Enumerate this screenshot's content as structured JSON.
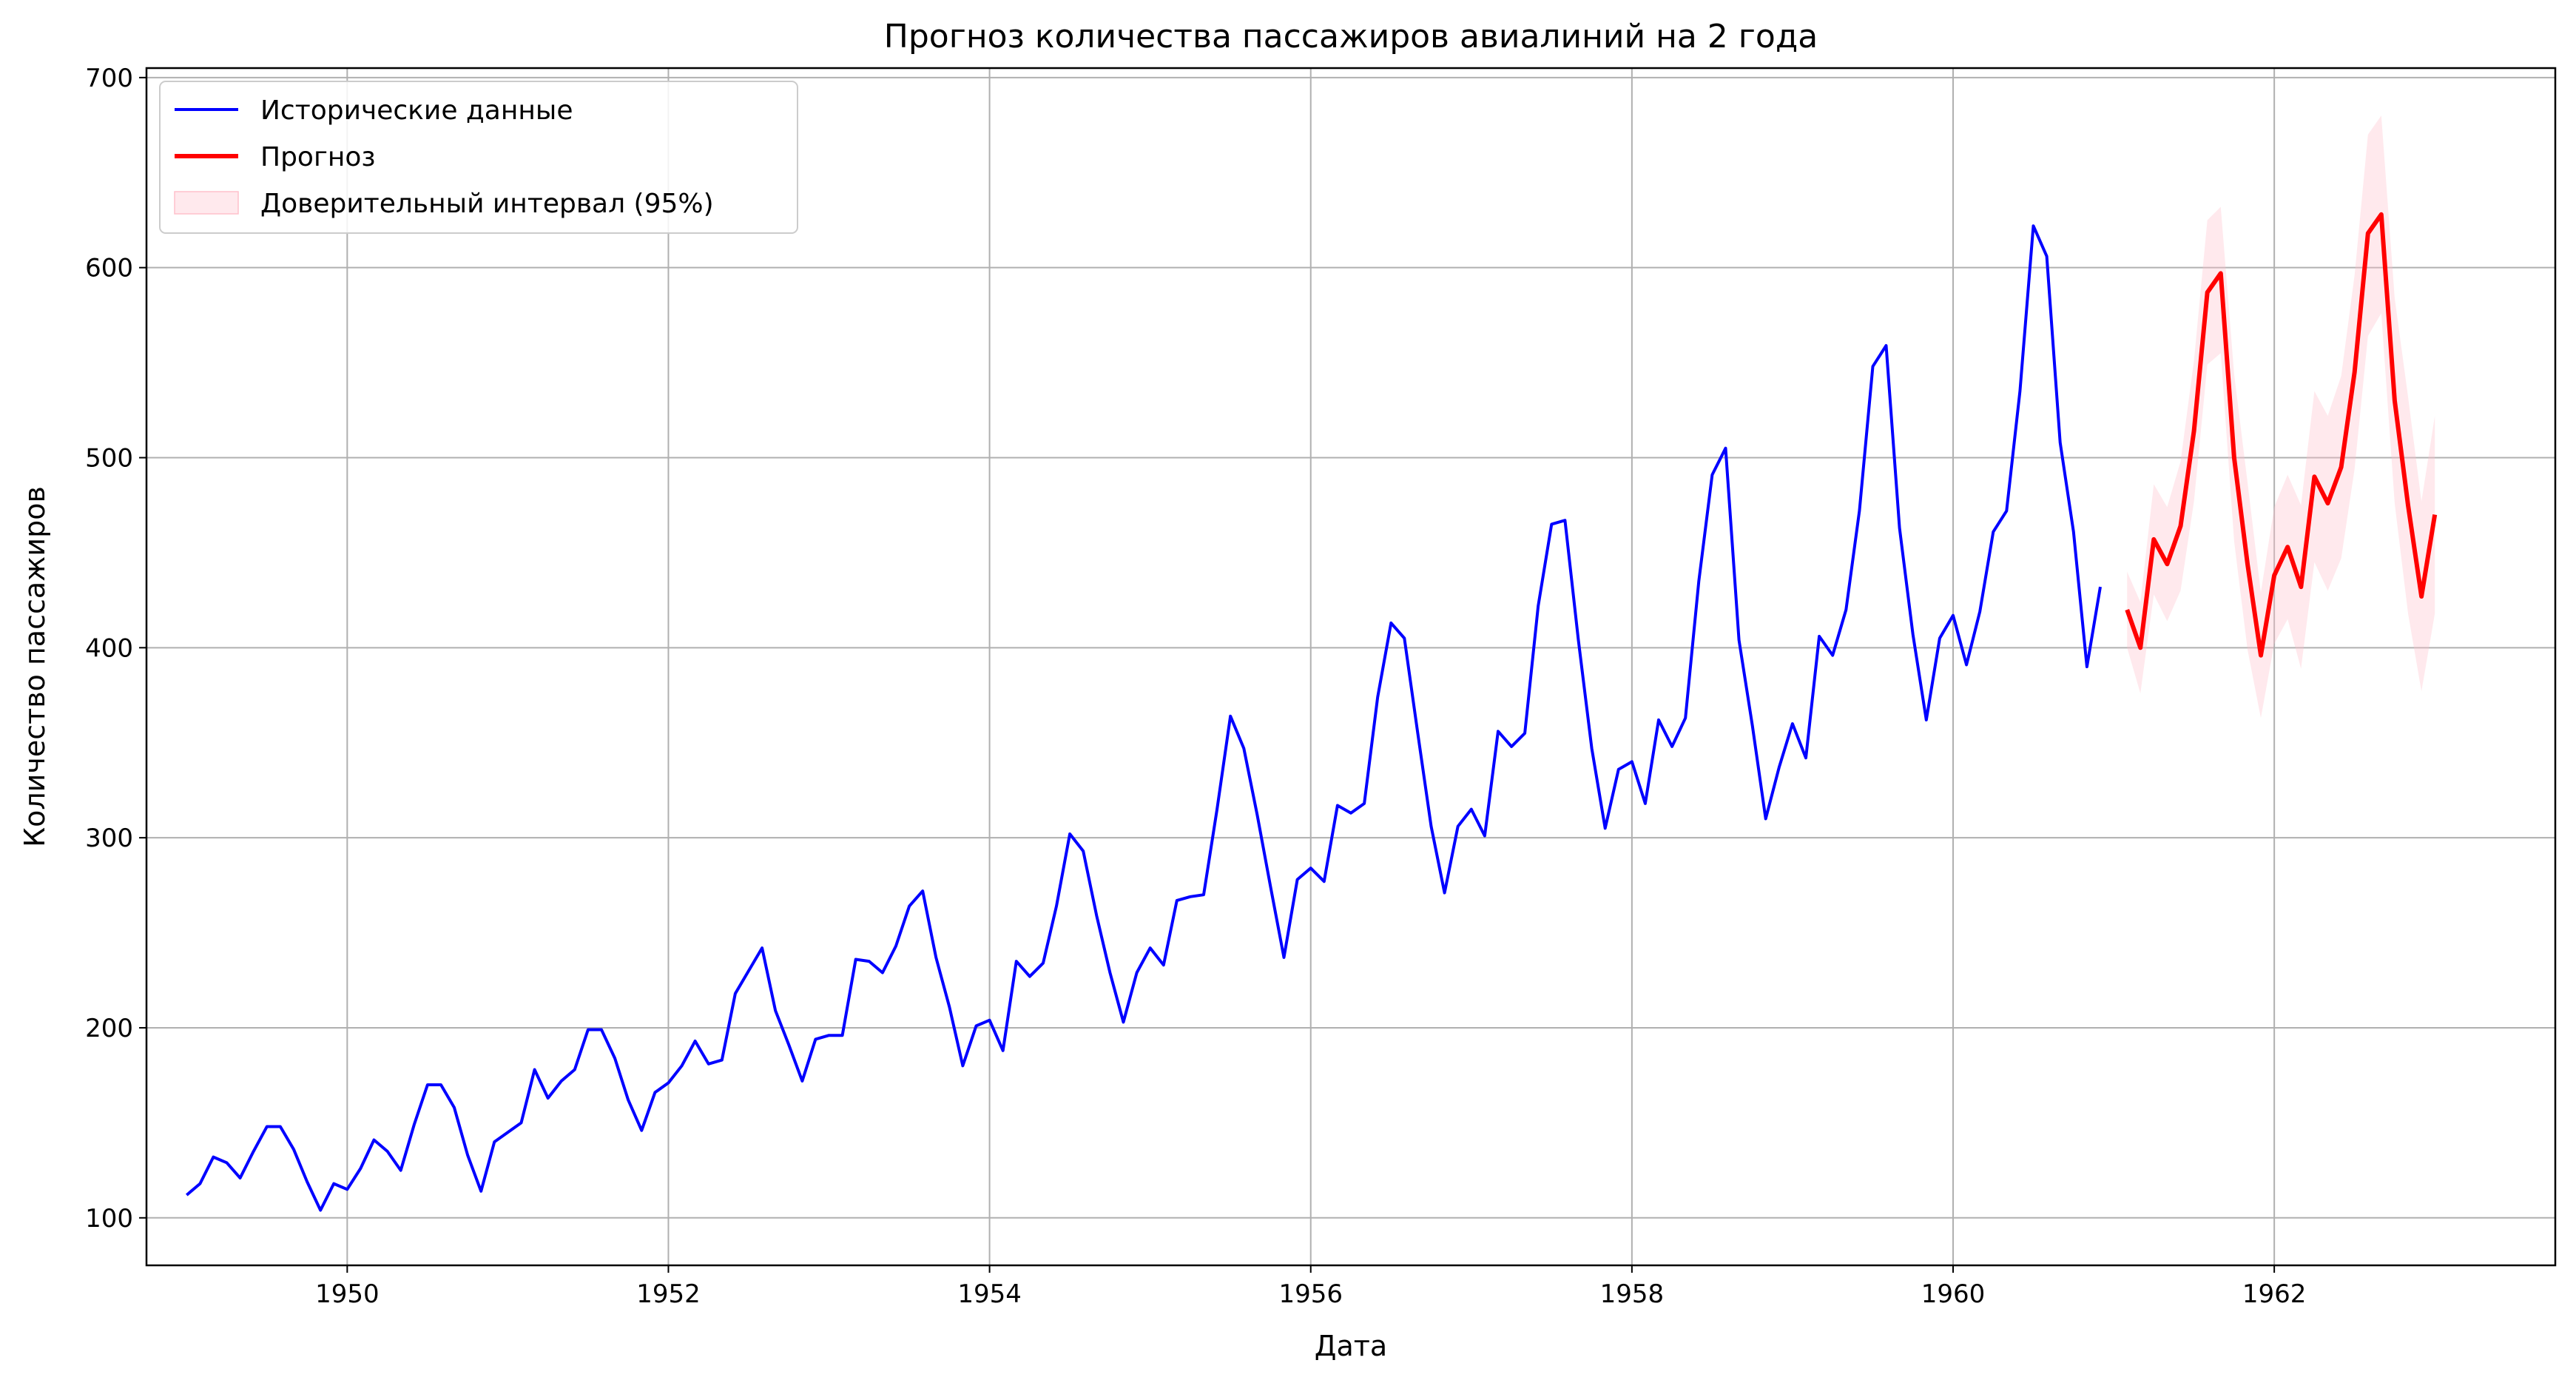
{
  "chart_data": {
    "type": "line",
    "title": "Прогноз количества пассажиров авиалиний на 2 года",
    "xlabel": "Дата",
    "ylabel": "Количество пассажиров",
    "xlim": [
      1948.75,
      1963.75
    ],
    "ylim": [
      75,
      705
    ],
    "xticks": [
      1950,
      1952,
      1954,
      1956,
      1958,
      1960,
      1962
    ],
    "yticks": [
      100,
      200,
      300,
      400,
      500,
      600,
      700
    ],
    "grid": true,
    "legend_position": "top-left",
    "series": [
      {
        "name": "Исторические данные",
        "color": "#0000ff",
        "x_start": 1949.0,
        "x_step": 0.083333,
        "values": [
          112,
          118,
          132,
          129,
          121,
          135,
          148,
          148,
          136,
          119,
          104,
          118,
          115,
          126,
          141,
          135,
          125,
          149,
          170,
          170,
          158,
          133,
          114,
          140,
          145,
          150,
          178,
          163,
          172,
          178,
          199,
          199,
          184,
          162,
          146,
          166,
          171,
          180,
          193,
          181,
          183,
          218,
          230,
          242,
          209,
          191,
          172,
          194,
          196,
          196,
          236,
          235,
          229,
          243,
          264,
          272,
          237,
          211,
          180,
          201,
          204,
          188,
          235,
          227,
          234,
          264,
          302,
          293,
          259,
          229,
          203,
          229,
          242,
          233,
          267,
          269,
          270,
          315,
          364,
          347,
          312,
          274,
          237,
          278,
          284,
          277,
          317,
          313,
          318,
          374,
          413,
          405,
          355,
          306,
          271,
          306,
          315,
          301,
          356,
          348,
          355,
          422,
          465,
          467,
          404,
          347,
          305,
          336,
          340,
          318,
          362,
          348,
          363,
          435,
          491,
          505,
          404,
          359,
          310,
          337,
          360,
          342,
          406,
          396,
          420,
          472,
          548,
          559,
          463,
          407,
          362,
          405,
          417,
          391,
          419,
          461,
          472,
          535,
          622,
          606,
          508,
          461,
          390,
          432
        ]
      },
      {
        "name": "Прогноз",
        "color": "#ff0000",
        "x_start": 1961.083333,
        "x_step": 0.083333,
        "values": [
          420,
          400,
          457,
          444,
          464,
          514,
          587,
          597,
          500,
          444,
          396,
          438,
          453,
          432,
          490,
          476,
          495,
          545,
          618,
          628,
          530,
          475,
          427,
          470
        ]
      }
    ],
    "confidence_interval": {
      "name": "Доверительный интервал (95%)",
      "color": "#ffc0cb",
      "lower": [
        400,
        376,
        428,
        414,
        430,
        477,
        549,
        555,
        456,
        399,
        363,
        402,
        415,
        389,
        445,
        430,
        447,
        494,
        564,
        576,
        476,
        418,
        377,
        418
      ],
      "upper": [
        440,
        424,
        486,
        474,
        498,
        551,
        625,
        632,
        544,
        487,
        429,
        474,
        491,
        475,
        535,
        522,
        543,
        596,
        670,
        680,
        584,
        532,
        477,
        522
      ]
    }
  }
}
